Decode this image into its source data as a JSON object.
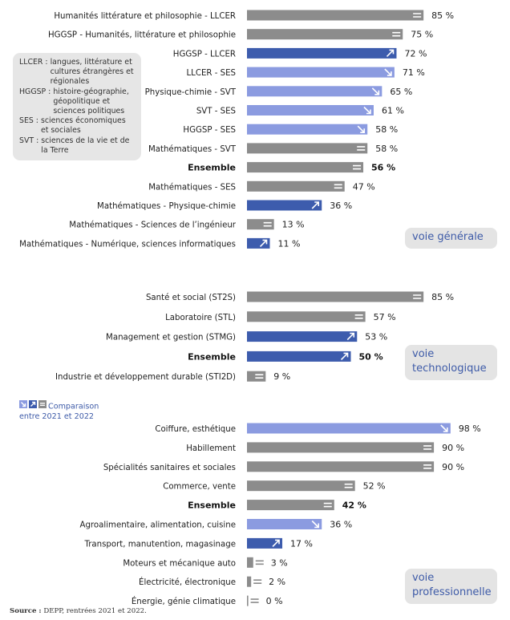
{
  "colors": {
    "up": "#3d5cad",
    "down": "#8b9be0",
    "stable": "#8c8c8c",
    "tag_text": "#3e5ba8",
    "tag_bg": "#e4e4e4"
  },
  "legend": [
    {
      "abbr": "LLCER :",
      "desc": "langues, littérature et cultures étrangères et régionales"
    },
    {
      "abbr": "HGGSP :",
      "desc": "histoire-géographie, géopolitique et sciences politiques"
    },
    {
      "abbr": "SES :",
      "desc": "sciences économiques et sociales"
    },
    {
      "abbr": "SVT :",
      "desc": "sciences de la vie et de la Terre"
    }
  ],
  "comparison_legend": {
    "line1": "Comparaison",
    "line2": "entre 2021 et 2022"
  },
  "source": {
    "label": "Source :",
    "text": "DEPP, rentrées 2021 et 2022."
  },
  "chart_data": {
    "type": "bar",
    "orientation": "horizontal",
    "unit": "%",
    "xlim": [
      0,
      100
    ],
    "groups": [
      {
        "name": "voie générale",
        "rows": [
          {
            "label": "Humanités littérature et philosophie - LLCER",
            "value": 85,
            "trend": "stable",
            "bold": false
          },
          {
            "label": "HGGSP - Humanités, littérature et philosophie",
            "value": 75,
            "trend": "stable",
            "bold": false
          },
          {
            "label": "HGGSP - LLCER",
            "value": 72,
            "trend": "up",
            "bold": false
          },
          {
            "label": "LLCER - SES",
            "value": 71,
            "trend": "down",
            "bold": false
          },
          {
            "label": "Physique-chimie - SVT",
            "value": 65,
            "trend": "down",
            "bold": false
          },
          {
            "label": "SVT - SES",
            "value": 61,
            "trend": "down",
            "bold": false
          },
          {
            "label": "HGGSP - SES",
            "value": 58,
            "trend": "down",
            "bold": false
          },
          {
            "label": "Mathématiques - SVT",
            "value": 58,
            "trend": "stable",
            "bold": false
          },
          {
            "label": "Ensemble",
            "value": 56,
            "trend": "stable",
            "bold": true
          },
          {
            "label": "Mathématiques - SES",
            "value": 47,
            "trend": "stable",
            "bold": false
          },
          {
            "label": "Mathématiques - Physique-chimie",
            "value": 36,
            "trend": "up",
            "bold": false
          },
          {
            "label": "Mathématiques - Sciences de l’ingénieur",
            "value": 13,
            "trend": "stable",
            "bold": false
          },
          {
            "label": "Mathématiques - Numérique, sciences informatiques",
            "value": 11,
            "trend": "up",
            "bold": false
          }
        ]
      },
      {
        "name": "voie technologique",
        "rows": [
          {
            "label": "Santé et social (ST2S)",
            "value": 85,
            "trend": "stable",
            "bold": false
          },
          {
            "label": "Laboratoire (STL)",
            "value": 57,
            "trend": "stable",
            "bold": false
          },
          {
            "label": "Management et gestion (STMG)",
            "value": 53,
            "trend": "up",
            "bold": false
          },
          {
            "label": "Ensemble",
            "value": 50,
            "trend": "up",
            "bold": true
          },
          {
            "label": "Industrie et développement durable (STI2D)",
            "value": 9,
            "trend": "stable",
            "bold": false
          }
        ]
      },
      {
        "name": "voie professionnelle",
        "rows": [
          {
            "label": "Coiffure, esthétique",
            "value": 98,
            "trend": "down",
            "bold": false
          },
          {
            "label": "Habillement",
            "value": 90,
            "trend": "stable",
            "bold": false
          },
          {
            "label": "Spécialités sanitaires et sociales",
            "value": 90,
            "trend": "stable",
            "bold": false
          },
          {
            "label": "Commerce, vente",
            "value": 52,
            "trend": "stable",
            "bold": false
          },
          {
            "label": "Ensemble",
            "value": 42,
            "trend": "stable",
            "bold": true
          },
          {
            "label": "Agroalimentaire, alimentation, cuisine",
            "value": 36,
            "trend": "down",
            "bold": false
          },
          {
            "label": "Transport, manutention, magasinage",
            "value": 17,
            "trend": "up",
            "bold": false
          },
          {
            "label": "Moteurs et mécanique auto",
            "value": 3,
            "trend": "stable",
            "bold": false
          },
          {
            "label": "Électricité, électronique",
            "value": 2,
            "trend": "stable",
            "bold": false
          },
          {
            "label": "Énergie, génie climatique",
            "value": 0,
            "trend": "stable",
            "bold": false
          }
        ]
      }
    ]
  },
  "tags": {
    "general_l1": "voie générale",
    "tech_l1": "voie",
    "tech_l2": "technologique",
    "pro_l1": "voie",
    "pro_l2": "professionnelle"
  }
}
